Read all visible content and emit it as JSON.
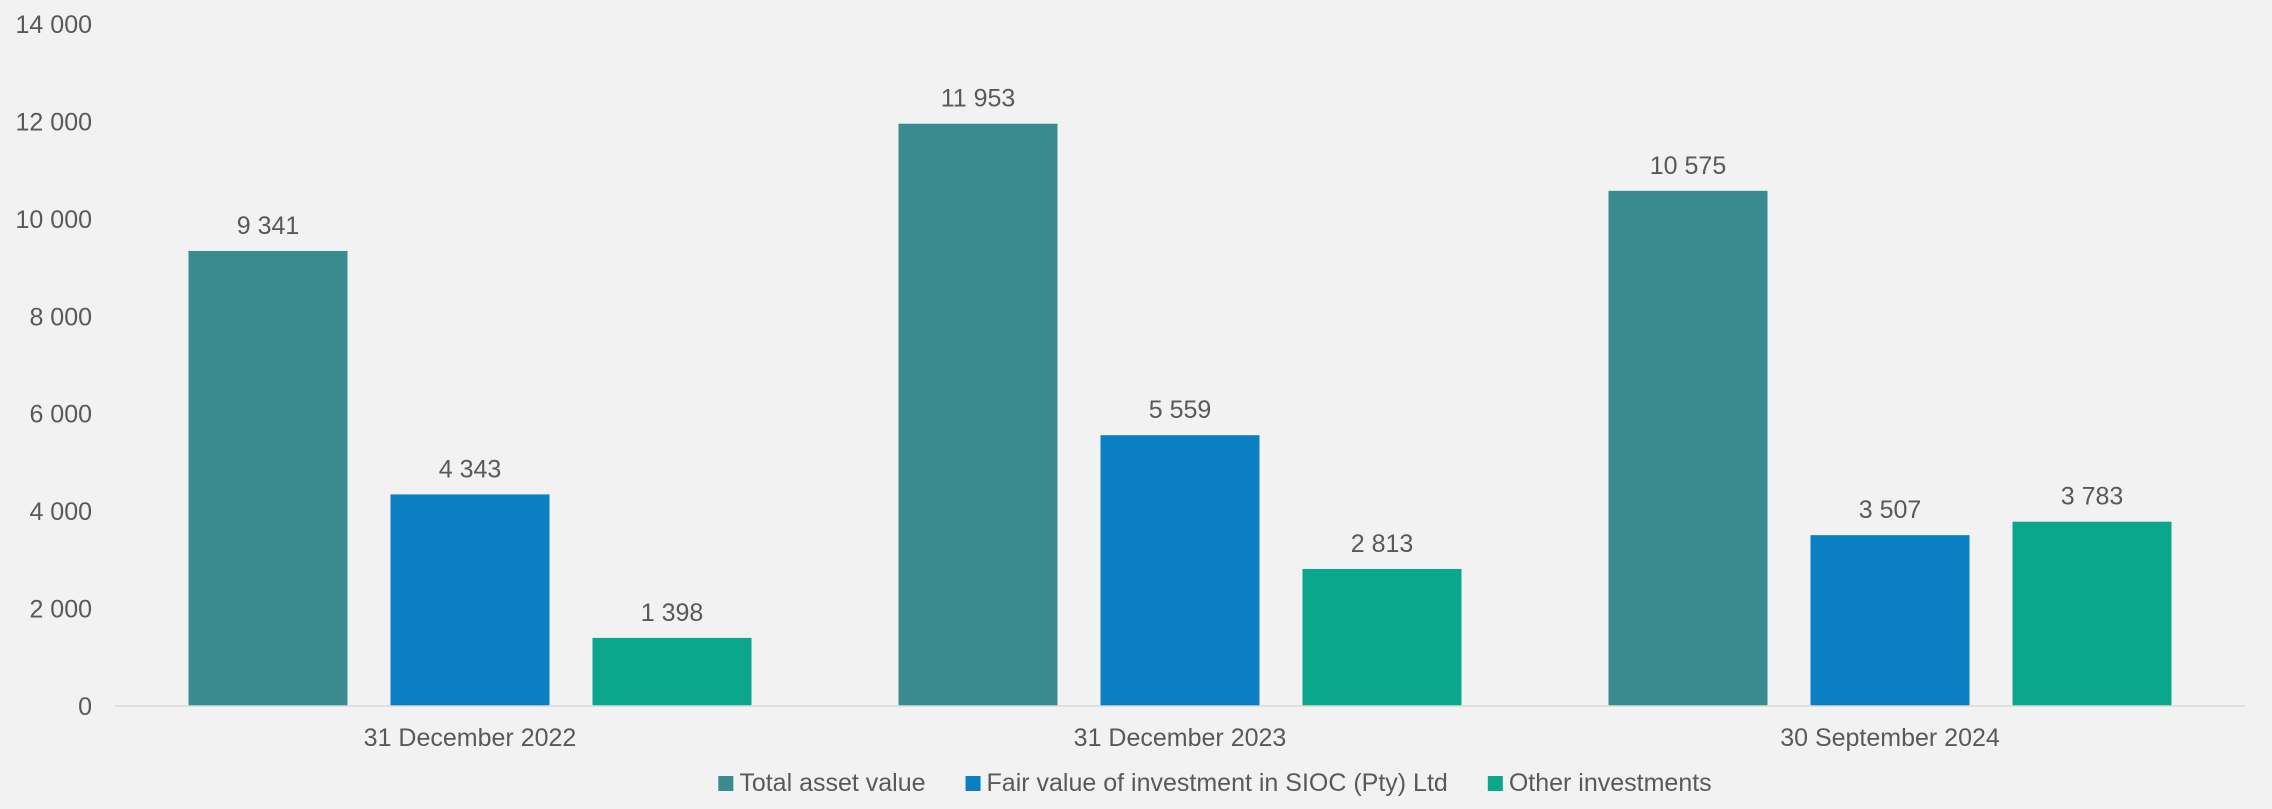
{
  "chart_data": {
    "type": "bar",
    "title": "",
    "xlabel": "",
    "ylabel": "",
    "ylim": [
      0,
      14000
    ],
    "yticks": [
      0,
      2000,
      4000,
      6000,
      8000,
      10000,
      12000,
      14000
    ],
    "ytick_labels": [
      "0",
      "2 000",
      "4 000",
      "6 000",
      "8 000",
      "10 000",
      "12 000",
      "14 000"
    ],
    "grid": false,
    "legend_position": "bottom",
    "categories": [
      "31 December 2022",
      "31 December 2023",
      "30 September 2024"
    ],
    "series": [
      {
        "name": "Total asset value",
        "color": "#3a8b90",
        "values": [
          9341,
          11953,
          10575
        ],
        "labels": [
          "9 341",
          "11 953",
          "10 575"
        ]
      },
      {
        "name": "Fair value of investment in SIOC (Pty) Ltd",
        "color": "#0a7fc4",
        "values": [
          4343,
          5559,
          3507
        ],
        "labels": [
          "4 343",
          "5 559",
          "3 507"
        ]
      },
      {
        "name": "Other investments",
        "color": "#0aa78d",
        "values": [
          1398,
          2813,
          3783
        ],
        "labels": [
          "1 398",
          "2 813",
          "3 783"
        ]
      }
    ]
  }
}
